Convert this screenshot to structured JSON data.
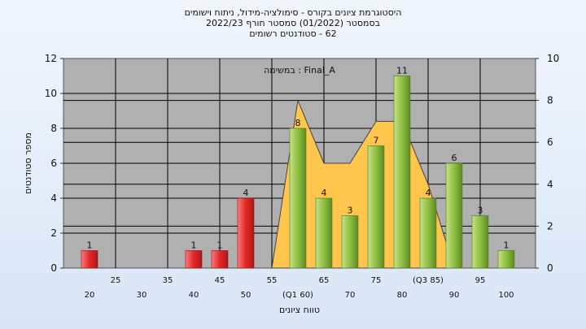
{
  "chart_data": {
    "type": "bar",
    "title_lines": [
      "היסטוגרמת ציונים בקורס - סימולציה-מידול, ניתוח וישומים",
      "בסמסטר (01/2022) סמסטר חורף 2022/23",
      "62 - סטודנטים רשומים"
    ],
    "annotation": "Final_A : במשימה",
    "ylabel": "מספר סטודנטים",
    "xlabel": "טווח ציונים",
    "ylim": [
      0,
      12
    ],
    "y2lim": [
      0,
      10
    ],
    "yticks": [
      "0",
      "2",
      "4",
      "6",
      "8",
      "10",
      "12"
    ],
    "y2ticks": [
      "0",
      "2",
      "4",
      "6",
      "8",
      "10"
    ],
    "xticks_lower": [
      "20",
      "30",
      "40",
      "50",
      "(Q1 60)",
      "70",
      "80",
      "90",
      "100"
    ],
    "xticks_upper": [
      "25",
      "35",
      "45",
      "55",
      "65",
      "75",
      "(Q3 85)",
      "95"
    ],
    "categories": [
      "20",
      "25",
      "30",
      "35",
      "40",
      "45",
      "50",
      "55",
      "60",
      "65",
      "70",
      "75",
      "80",
      "85",
      "90",
      "95",
      "100"
    ],
    "values": [
      1,
      0,
      0,
      0,
      1,
      1,
      4,
      0,
      8,
      4,
      3,
      7,
      11,
      4,
      6,
      3,
      1
    ],
    "data_labels": [
      "1",
      "",
      "",
      "",
      "1",
      "1",
      "4",
      "",
      "8",
      "4",
      "3",
      "7",
      "11",
      "4",
      "6",
      "3",
      "1"
    ],
    "fail_threshold": 55,
    "grid": true,
    "colors": {
      "fail": "#e03a3a",
      "pass": "#8fbf3f",
      "area": "#ffc64d",
      "plot_bg": "#b0b0b0"
    }
  }
}
